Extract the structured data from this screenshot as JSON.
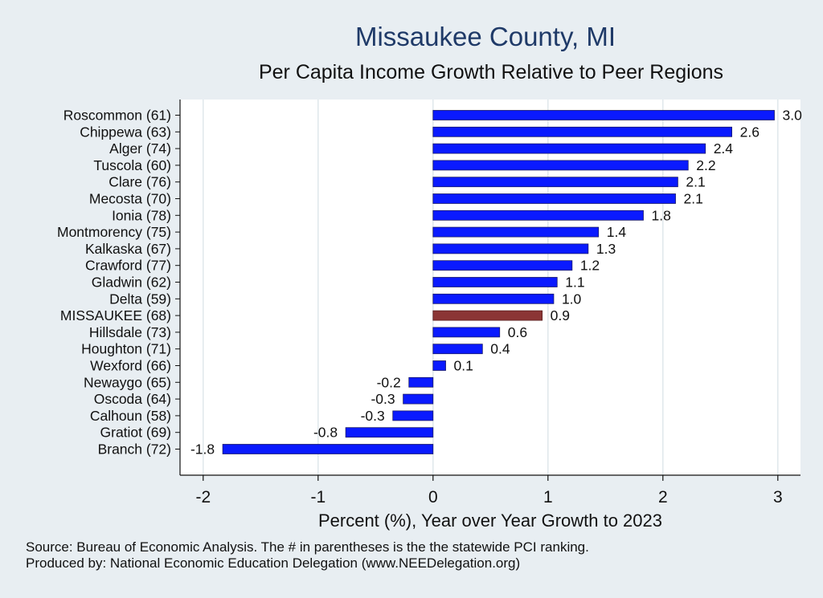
{
  "chart_data": {
    "type": "bar",
    "orientation": "horizontal",
    "title": "Missaukee County, MI",
    "subtitle": "Per Capita Income Growth Relative to Peer Regions",
    "xlabel": "Percent (%), Year over Year Growth to 2023",
    "xlim": [
      -2,
      3
    ],
    "xticks": [
      -2,
      -1,
      0,
      1,
      2,
      3
    ],
    "categories": [
      "Roscommon (61)",
      "Chippewa (63)",
      "Alger (74)",
      "Tuscola (60)",
      "Clare (76)",
      "Mecosta (70)",
      "Ionia (78)",
      "Montmorency (75)",
      "Kalkaska (67)",
      "Crawford (77)",
      "Gladwin (62)",
      "Delta (59)",
      "MISSAUKEE (68)",
      "Hillsdale (73)",
      "Houghton (71)",
      "Wexford (66)",
      "Newaygo (65)",
      "Oscoda (64)",
      "Calhoun (58)",
      "Gratiot (69)",
      "Branch (72)"
    ],
    "values": [
      2.97,
      2.6,
      2.37,
      2.22,
      2.13,
      2.11,
      1.83,
      1.44,
      1.35,
      1.21,
      1.08,
      1.05,
      0.95,
      0.58,
      0.43,
      0.11,
      -0.21,
      -0.26,
      -0.35,
      -0.76,
      -1.83
    ],
    "value_labels": [
      "3.0",
      "2.6",
      "2.4",
      "2.2",
      "2.1",
      "2.1",
      "1.8",
      "1.4",
      "1.3",
      "1.2",
      "1.1",
      "1.0",
      "0.9",
      "0.6",
      "0.4",
      "0.1",
      "-0.2",
      "-0.3",
      "-0.3",
      "-0.8",
      "-1.8"
    ],
    "highlight": "MISSAUKEE (68)",
    "grid": true,
    "colors": {
      "bar": "#0a1aff",
      "highlight": "#8b3535",
      "bar_outline": "#1a1a66",
      "grid": "#dde6ea",
      "plot_bg": "#ffffff"
    }
  },
  "footer": {
    "source": "Source: Bureau of Economic Analysis. The # in parentheses is the the statewide PCI ranking.",
    "producer": "Produced by: National Economic Education Delegation (www.NEEDelegation.org)"
  }
}
